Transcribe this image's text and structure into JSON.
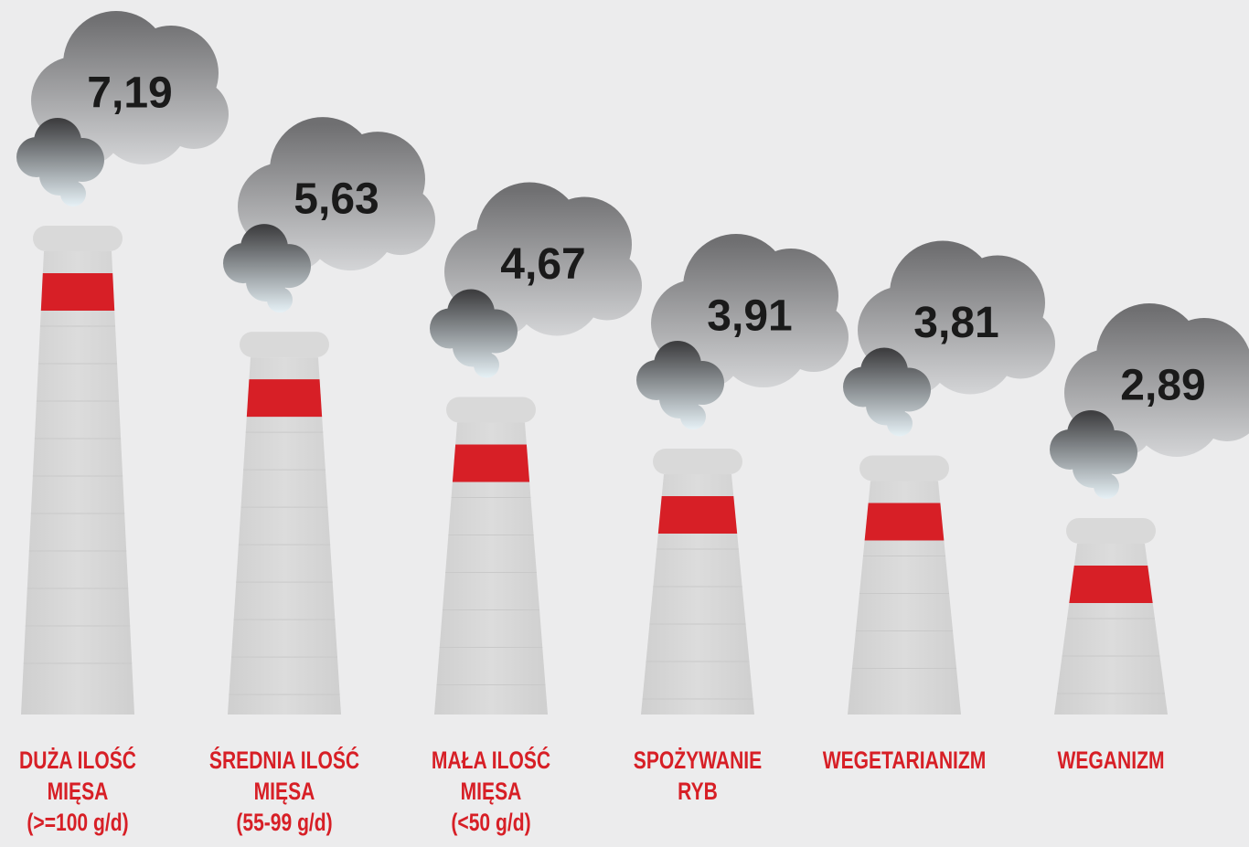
{
  "chart_data": {
    "type": "bar",
    "categories": [
      "DUŻA ILOŚĆ\nMIĘSA\n(>=100 g/d)",
      "ŚREDNIA ILOŚĆ\nMIĘSA\n(55-99 g/d)",
      "MAŁA ILOŚĆ\nMIĘSA\n(<50 g/d)",
      "SPOŻYWANIE\nRYB",
      "WEGETARIANIZM",
      "WEGANIZM"
    ],
    "values": [
      7.19,
      5.63,
      4.67,
      3.91,
      3.81,
      2.89
    ],
    "value_labels": [
      "7,19",
      "5,63",
      "4,67",
      "3,91",
      "3,81",
      "2,89"
    ],
    "color": "#d71f26"
  }
}
